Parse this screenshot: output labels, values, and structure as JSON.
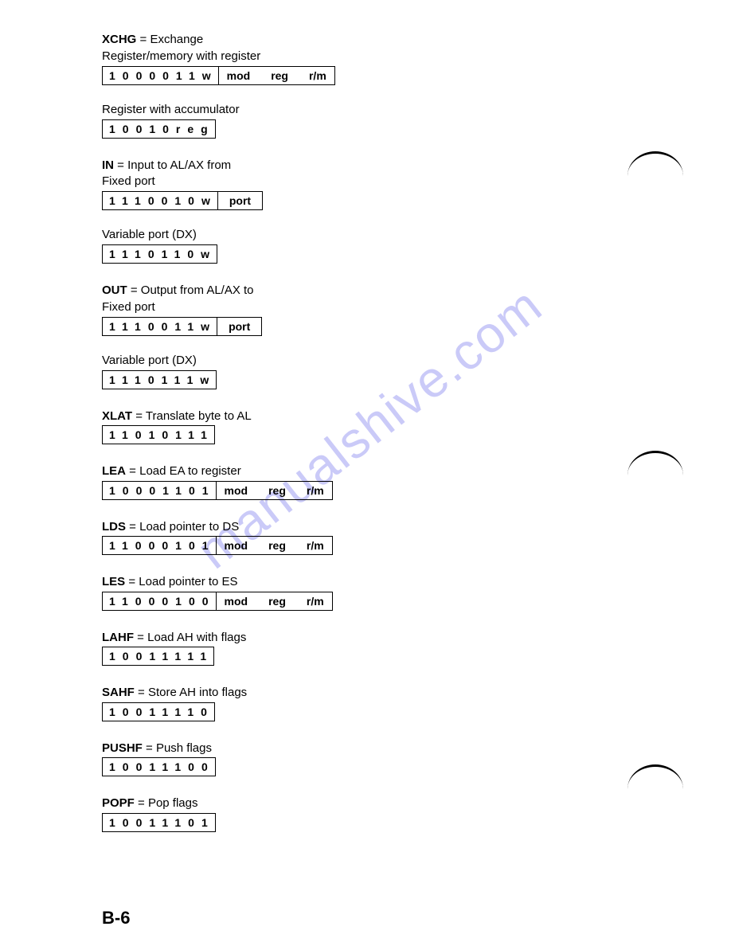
{
  "page_number": "B-6",
  "watermark_text": "manualshive.com",
  "colors": {
    "text": "#000000",
    "background": "#ffffff",
    "border": "#000000",
    "watermark": "#8b8bf0"
  },
  "typography": {
    "body_fontsize": 15,
    "bits_fontsize": 14,
    "pagenum_fontsize": 22,
    "mnemonic_weight": "bold"
  },
  "instructions": [
    {
      "mnemonic": "XCHG",
      "desc": "Exchange",
      "variants": [
        {
          "subtitle": "Register/memory with register",
          "fields": [
            {
              "type": "bits",
              "value": "1 0 0 0 0 1 1 w"
            },
            {
              "type": "modrm",
              "mod": "mod",
              "reg": "reg",
              "rm": "r/m"
            }
          ]
        },
        {
          "subtitle": "Register with accumulator",
          "fields": [
            {
              "type": "bits",
              "value": "1 0 0 1 0 reg"
            }
          ]
        }
      ]
    },
    {
      "mnemonic": "IN",
      "desc": "Input to AL/AX from",
      "variants": [
        {
          "subtitle": "Fixed port",
          "fields": [
            {
              "type": "bits",
              "value": "1 1 1 0 0 1 0 w"
            },
            {
              "type": "port",
              "value": "port"
            }
          ]
        },
        {
          "subtitle": "Variable port (DX)",
          "fields": [
            {
              "type": "bits",
              "value": "1 1 1 0 1 1 0 w"
            }
          ]
        }
      ]
    },
    {
      "mnemonic": "OUT",
      "desc": "Output from AL/AX to",
      "variants": [
        {
          "subtitle": "Fixed port",
          "fields": [
            {
              "type": "bits",
              "value": "1 1 1 0 0 1 1 w"
            },
            {
              "type": "port",
              "value": "port"
            }
          ]
        },
        {
          "subtitle": "Variable port (DX)",
          "fields": [
            {
              "type": "bits",
              "value": "1 1 1 0 1 1 1 w"
            }
          ]
        }
      ]
    },
    {
      "mnemonic": "XLAT",
      "desc": "Translate byte to AL",
      "variants": [
        {
          "subtitle": "",
          "fields": [
            {
              "type": "bits",
              "value": "1 1 0 1 0 1 1 1"
            }
          ]
        }
      ]
    },
    {
      "mnemonic": "LEA",
      "desc": "Load EA to register",
      "variants": [
        {
          "subtitle": "",
          "fields": [
            {
              "type": "bits",
              "value": "1 0 0 0 1 1 0 1"
            },
            {
              "type": "modrm",
              "mod": "mod",
              "reg": "reg",
              "rm": "r/m"
            }
          ]
        }
      ]
    },
    {
      "mnemonic": "LDS",
      "desc": "Load pointer to DS",
      "variants": [
        {
          "subtitle": "",
          "fields": [
            {
              "type": "bits",
              "value": "1 1 0 0 0 1 0 1"
            },
            {
              "type": "modrm",
              "mod": "mod",
              "reg": "reg",
              "rm": "r/m"
            }
          ]
        }
      ]
    },
    {
      "mnemonic": "LES",
      "desc": "Load pointer to ES",
      "variants": [
        {
          "subtitle": "",
          "fields": [
            {
              "type": "bits",
              "value": "1 1 0 0 0 1 0 0"
            },
            {
              "type": "modrm",
              "mod": "mod",
              "reg": "reg",
              "rm": "r/m"
            }
          ]
        }
      ]
    },
    {
      "mnemonic": "LAHF",
      "desc": "Load AH with flags",
      "variants": [
        {
          "subtitle": "",
          "fields": [
            {
              "type": "bits",
              "value": "1 0 0 1 1 1 1 1"
            }
          ]
        }
      ]
    },
    {
      "mnemonic": "SAHF",
      "desc": "Store AH into flags",
      "variants": [
        {
          "subtitle": "",
          "fields": [
            {
              "type": "bits",
              "value": "1 0 0 1 1 1 1 0"
            }
          ]
        }
      ]
    },
    {
      "mnemonic": "PUSHF",
      "desc": "Push flags",
      "variants": [
        {
          "subtitle": "",
          "fields": [
            {
              "type": "bits",
              "value": "1 0 0 1 1 1 0 0"
            }
          ]
        }
      ]
    },
    {
      "mnemonic": "POPF",
      "desc": "Pop flags",
      "variants": [
        {
          "subtitle": "",
          "fields": [
            {
              "type": "bits",
              "value": "1 0 0 1 1 1 0 1"
            }
          ]
        }
      ]
    }
  ]
}
